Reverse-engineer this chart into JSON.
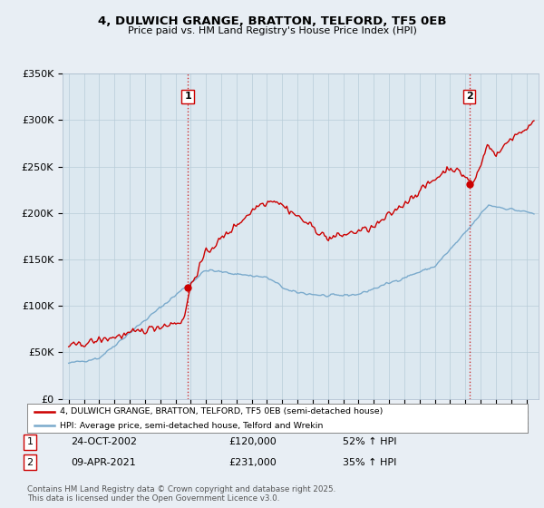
{
  "title": "4, DULWICH GRANGE, BRATTON, TELFORD, TF5 0EB",
  "subtitle": "Price paid vs. HM Land Registry's House Price Index (HPI)",
  "background_color": "#e8eef4",
  "plot_bg_color": "#dce8f0",
  "red_color": "#cc0000",
  "blue_color": "#7aaacc",
  "sale1_x": 2002.81,
  "sale1_y": 120000,
  "sale2_x": 2021.27,
  "sale2_y": 231000,
  "legend_line1": "4, DULWICH GRANGE, BRATTON, TELFORD, TF5 0EB (semi-detached house)",
  "legend_line2": "HPI: Average price, semi-detached house, Telford and Wrekin",
  "table_row1": [
    "1",
    "24-OCT-2002",
    "£120,000",
    "52% ↑ HPI"
  ],
  "table_row2": [
    "2",
    "09-APR-2021",
    "£231,000",
    "35% ↑ HPI"
  ],
  "footnote": "Contains HM Land Registry data © Crown copyright and database right 2025.\nThis data is licensed under the Open Government Licence v3.0.",
  "ylim": [
    0,
    350000
  ],
  "yticks": [
    0,
    50000,
    100000,
    150000,
    200000,
    250000,
    300000,
    350000
  ],
  "ytick_labels": [
    "£0",
    "£50K",
    "£100K",
    "£150K",
    "£200K",
    "£250K",
    "£300K",
    "£350K"
  ],
  "xlim_start": 1994.6,
  "xlim_end": 2025.8
}
